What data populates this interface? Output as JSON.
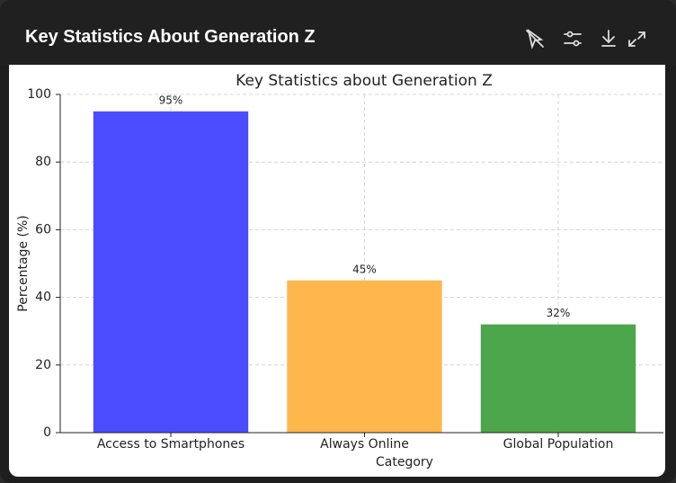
{
  "header": {
    "title": "Key Statistics About Generation Z"
  },
  "chart_data": {
    "type": "bar",
    "title": "Key Statistics about Generation Z",
    "xlabel": "Category",
    "ylabel": "Percentage (%)",
    "categories": [
      "Access to Smartphones",
      "Always Online",
      "Global Population"
    ],
    "values": [
      95,
      45,
      32
    ],
    "value_labels": [
      "95%",
      "45%",
      "32%"
    ],
    "colors": [
      "#4b4bff",
      "#ffb74d",
      "#4ca64c"
    ],
    "ylim": [
      0,
      100
    ],
    "yticks": [
      0,
      20,
      40,
      60,
      80,
      100
    ],
    "grid": true
  }
}
